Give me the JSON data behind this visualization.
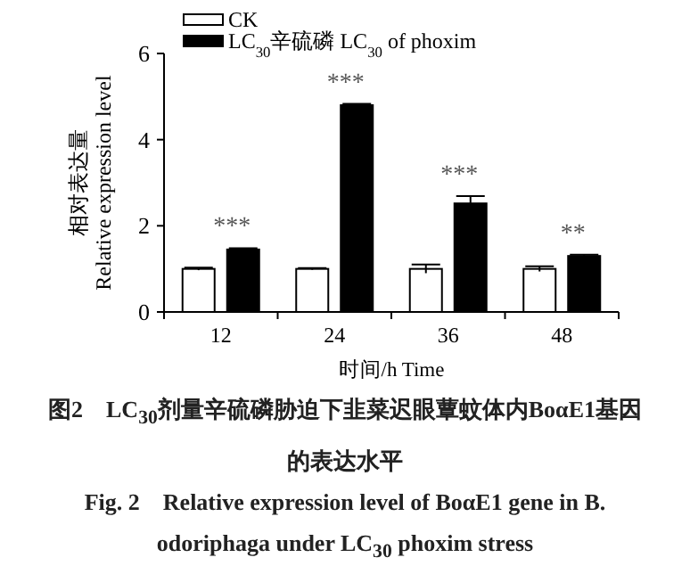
{
  "chart_data": {
    "type": "bar",
    "title": "图2　LC$_{30}$剂量辛硫磷胁迫下韭菜迟眼蕈蚊体内BoαE1基因的表达水平",
    "subtitle": "Fig. 2　Relative expression level of BoαE1 gene in B. odoriphaga under LC$_{30}$ phoxim stress",
    "xlabel": "时间/h Time",
    "ylabel": "相对表达量\nRelative expression level",
    "categories": [
      "12",
      "24",
      "36",
      "48"
    ],
    "series": [
      {
        "name": "CK",
        "color": "#ffffff",
        "values": [
          1.0,
          1.0,
          1.0,
          1.0
        ],
        "errors": [
          0.03,
          0.02,
          0.1,
          0.06
        ]
      },
      {
        "name": "LC$_{30}$辛硫磷 LC$_{30}$ of phoxim",
        "color": "#000000",
        "values": [
          1.45,
          4.8,
          2.52,
          1.3
        ],
        "errors": [
          0.03,
          0.03,
          0.17,
          0.03
        ]
      }
    ],
    "annotations": [
      {
        "text": "***",
        "x": "12",
        "y": 1.45
      },
      {
        "text": "***",
        "x": "24",
        "y": 4.8
      },
      {
        "text": "***",
        "x": "36",
        "y": 2.52
      },
      {
        "text": "**",
        "x": "48",
        "y": 1.3
      }
    ],
    "ylim": [
      0,
      6
    ],
    "yticks": [
      0,
      2,
      4,
      6
    ],
    "legend": "top left",
    "grid": false
  }
}
